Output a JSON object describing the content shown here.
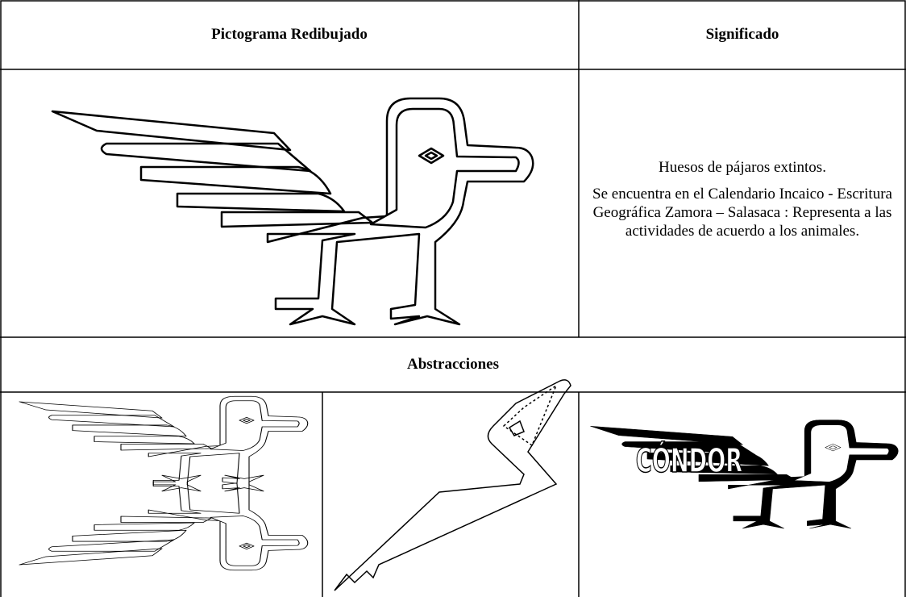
{
  "table": {
    "header": [
      "Pictograma Redibujado",
      "Significado"
    ],
    "meaning": [
      "Huesos de pájaros extintos.",
      "Se encuentra en el Calendario Incaico - Escritura Geográfica Zamora – Salasaca : Representa a las actividades de acuerdo a los animales."
    ],
    "abstractions_title": "Abstracciones",
    "condor_label": "CÓNDOR"
  }
}
